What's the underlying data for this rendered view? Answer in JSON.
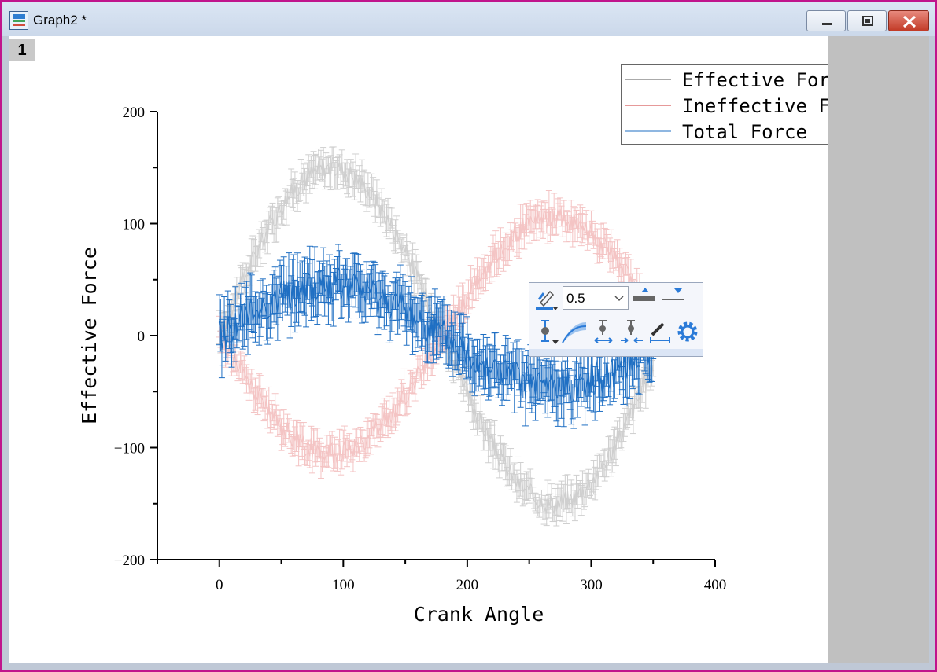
{
  "window": {
    "title": "Graph2 *",
    "layer_label": "1"
  },
  "mini_toolbar": {
    "line_width_value": "0.5",
    "buttons": [
      "line-color",
      "line-width",
      "increase-width",
      "decrease-width",
      "symbol-color",
      "error-band",
      "cap-size-increase",
      "cap-size-decrease",
      "swap-xy-errorbar",
      "settings"
    ]
  },
  "chart_data": {
    "type": "line",
    "xlabel": "Crank Angle",
    "ylabel": "Effective Force",
    "xlim": [
      -50,
      400
    ],
    "ylim": [
      -200,
      200
    ],
    "x_ticks": [
      0,
      100,
      200,
      300,
      400
    ],
    "y_ticks": [
      200,
      100,
      0,
      -100,
      -200
    ],
    "x_tick_labels": [
      "0",
      "100",
      "200",
      "300",
      "400"
    ],
    "y_tick_labels": [
      "200",
      "100",
      "0",
      "−100",
      "−200"
    ],
    "legend_position": "top-right",
    "grid": false,
    "x_range": [
      0,
      350
    ],
    "x_step": 1,
    "series": [
      {
        "name": "Effective Force",
        "color": "#cfcfcf",
        "amplitude": 150,
        "phase": "sin",
        "error": 12
      },
      {
        "name": "Ineffective Force",
        "color": "#f4c4c4",
        "amplitude": -105,
        "phase": "sin",
        "error": 12
      },
      {
        "name": "Total Force",
        "color": "#1f6fc3",
        "amplitude": 45,
        "phase": "sin",
        "error": 20
      }
    ],
    "legend_line_colors": [
      "#555555",
      "#cc3333",
      "#1f6fc3"
    ]
  },
  "colors": {
    "window_border": "#c0148c",
    "page_background": "#ffffff",
    "workspace_gray": "#c0c0c0"
  }
}
